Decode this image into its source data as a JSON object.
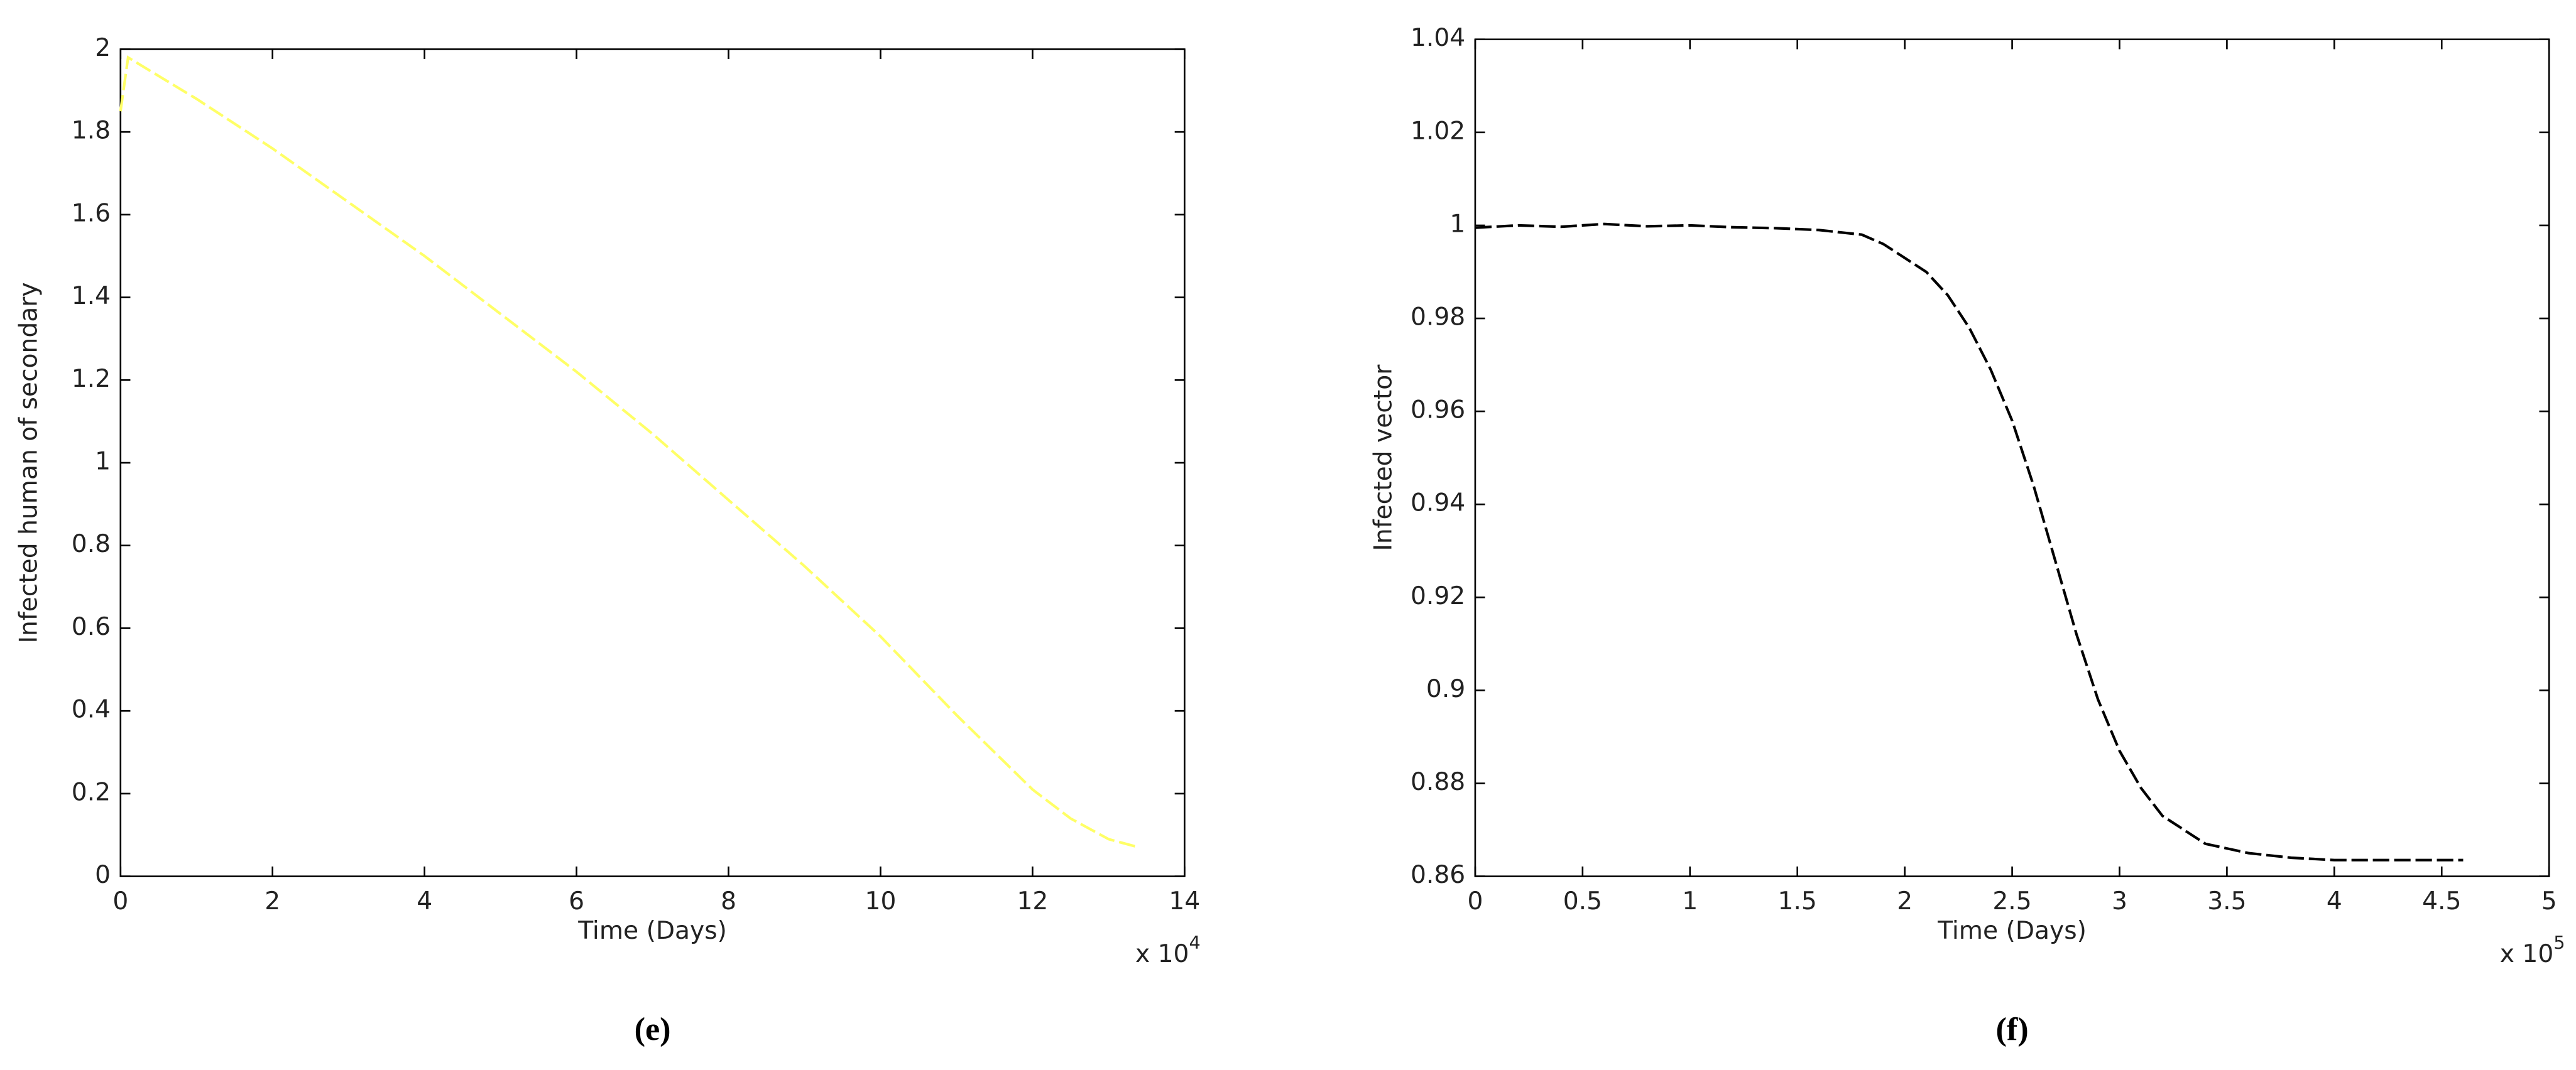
{
  "chart_data": [
    {
      "type": "line",
      "panel_label": "(e)",
      "x_label": "Time (Days)",
      "y_label": "Infected human of secondary",
      "x_multiplier": "x 10",
      "x_multiplier_exponent": "4",
      "xlim": [
        0,
        14
      ],
      "xticks": [
        0,
        2,
        4,
        6,
        8,
        10,
        12,
        14
      ],
      "ylim": [
        0,
        2
      ],
      "yticks": [
        0,
        0.2,
        0.4,
        0.6,
        0.8,
        1,
        1.2,
        1.4,
        1.6,
        1.8,
        2
      ],
      "x": [
        0,
        0.1,
        1,
        2,
        3,
        4,
        5,
        6,
        7,
        8,
        9,
        10,
        11,
        12,
        12.5,
        13,
        13.4
      ],
      "series": [
        {
          "color": "#ffff66",
          "values": [
            1.85,
            1.98,
            1.88,
            1.76,
            1.63,
            1.5,
            1.36,
            1.22,
            1.07,
            0.91,
            0.75,
            0.58,
            0.39,
            0.21,
            0.14,
            0.09,
            0.07
          ]
        }
      ]
    },
    {
      "type": "line",
      "panel_label": "(f)",
      "x_label": "Time (Days)",
      "y_label": "Infected vector",
      "x_multiplier": "x 10",
      "x_multiplier_exponent": "5",
      "xlim": [
        0,
        5
      ],
      "xticks": [
        0,
        0.5,
        1,
        1.5,
        2,
        2.5,
        3,
        3.5,
        4,
        4.5,
        5
      ],
      "ylim": [
        0.86,
        1.04
      ],
      "yticks": [
        0.86,
        0.88,
        0.9,
        0.92,
        0.94,
        0.96,
        0.98,
        1,
        1.02,
        1.04
      ],
      "x": [
        0,
        0.2,
        0.4,
        0.6,
        0.8,
        1,
        1.2,
        1.4,
        1.6,
        1.8,
        1.9,
        2,
        2.1,
        2.2,
        2.3,
        2.4,
        2.5,
        2.6,
        2.7,
        2.8,
        2.9,
        3,
        3.1,
        3.2,
        3.4,
        3.6,
        3.8,
        4,
        4.3,
        4.6
      ],
      "series": [
        {
          "color": "#000000",
          "values": [
            0.9995,
            1.0,
            0.9997,
            1.0003,
            0.9998,
            1.0,
            0.9996,
            0.9994,
            0.999,
            0.998,
            0.996,
            0.993,
            0.99,
            0.985,
            0.978,
            0.969,
            0.958,
            0.944,
            0.928,
            0.912,
            0.898,
            0.887,
            0.879,
            0.873,
            0.867,
            0.865,
            0.864,
            0.8635,
            0.8635,
            0.8635
          ]
        }
      ]
    }
  ]
}
